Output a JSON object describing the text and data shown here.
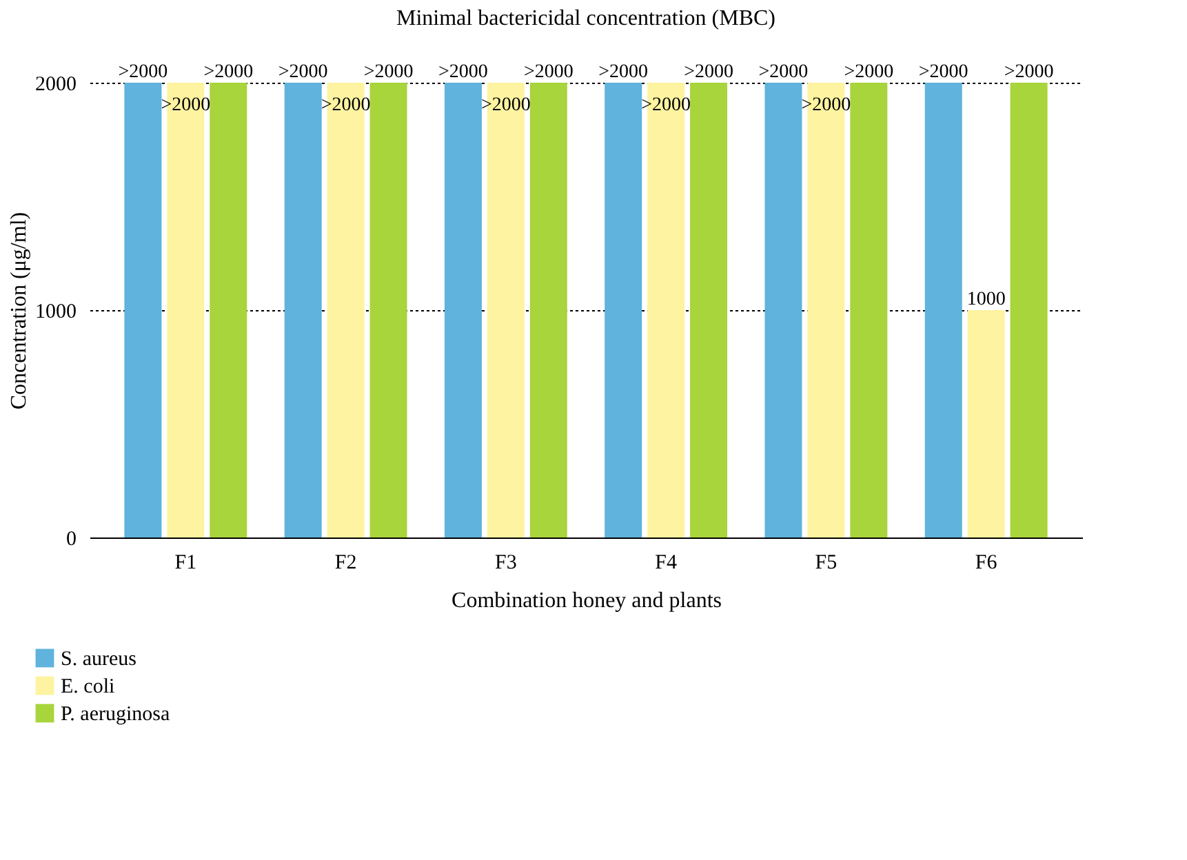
{
  "chart_data": {
    "type": "bar",
    "title": "Minimal bactericidal concentration (MBC)",
    "xlabel": "Combination honey and plants",
    "ylabel": "Concentration (μg/ml)",
    "categories": [
      "F1",
      "F2",
      "F3",
      "F4",
      "F5",
      "F6"
    ],
    "series": [
      {
        "name": "S. aureus",
        "color": "#5fb3dc",
        "values": [
          2000,
          2000,
          2000,
          2000,
          2000,
          2000
        ],
        "value_labels": [
          ">2000",
          ">2000",
          ">2000",
          ">2000",
          ">2000",
          ">2000"
        ]
      },
      {
        "name": "E. coli",
        "color": "#fdf3a0",
        "values": [
          2000,
          2000,
          2000,
          2000,
          2000,
          1000
        ],
        "value_labels": [
          ">2000",
          ">2000",
          ">2000",
          ">2000",
          ">2000",
          "1000"
        ]
      },
      {
        "name": "P. aeruginosa",
        "color": "#a8d43c",
        "values": [
          2000,
          2000,
          2000,
          2000,
          2000,
          2000
        ],
        "value_labels": [
          ">2000",
          ">2000",
          ">2000",
          ">2000",
          ">2000",
          ">2000"
        ]
      }
    ],
    "ylim": [
      0,
      2000
    ],
    "yticks": [
      0,
      1000,
      2000
    ],
    "grid": "y",
    "legend": "bottom left"
  }
}
